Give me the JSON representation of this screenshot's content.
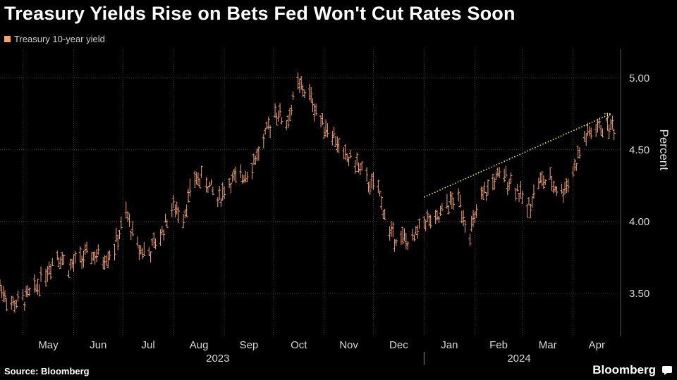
{
  "header": {
    "title": "Treasury Yields Rise on Bets Fed Won't Cut Rates Soon"
  },
  "footer": {
    "source": "Source: Bloomberg",
    "brand": "Bloomberg"
  },
  "colors": {
    "series": "#f5a26e",
    "arrow": "#f0f060",
    "grid": "#3a3a3a",
    "text": "#d8d8d8"
  },
  "chart_data": {
    "type": "line",
    "title": "Treasury Yields Rise on Bets Fed Won't Cut Rates Soon",
    "ylabel": "Percent",
    "ylim": [
      3.2,
      5.2
    ],
    "yticks": [
      3.5,
      4.0,
      4.5,
      5.0
    ],
    "ytick_labels": [
      "3.50",
      "4.00",
      "4.50",
      "5.00"
    ],
    "xlim": [
      "2023-04-17",
      "2024-04-30"
    ],
    "x_month_labels": [
      "May",
      "Jun",
      "Jul",
      "Aug",
      "Sep",
      "Oct",
      "Nov",
      "Dec",
      "Jan",
      "Feb",
      "Mar",
      "Apr"
    ],
    "x_month_starts": [
      "2023-05-01",
      "2023-06-01",
      "2023-07-01",
      "2023-08-01",
      "2023-09-01",
      "2023-10-01",
      "2023-11-01",
      "2023-12-01",
      "2024-01-01",
      "2024-02-01",
      "2024-03-01",
      "2024-04-01"
    ],
    "year_labels": [
      {
        "label": "2023",
        "center": "2023-08-28"
      },
      {
        "label": "2024",
        "center": "2024-02-28"
      }
    ],
    "year_divider": "2024-01-01",
    "legend": [
      "Treasury 10-year yield"
    ],
    "grid": true,
    "legend_position": "top-left",
    "series": [
      {
        "name": "Treasury 10-year yield",
        "style": "daily-high-low-bars",
        "x": [
          "2023-04-17",
          "2023-04-24",
          "2023-05-01",
          "2023-05-08",
          "2023-05-15",
          "2023-05-22",
          "2023-05-29",
          "2023-06-05",
          "2023-06-12",
          "2023-06-19",
          "2023-06-26",
          "2023-07-03",
          "2023-07-10",
          "2023-07-17",
          "2023-07-24",
          "2023-07-31",
          "2023-08-07",
          "2023-08-14",
          "2023-08-21",
          "2023-08-28",
          "2023-09-04",
          "2023-09-11",
          "2023-09-18",
          "2023-09-25",
          "2023-10-02",
          "2023-10-09",
          "2023-10-16",
          "2023-10-23",
          "2023-10-30",
          "2023-11-06",
          "2023-11-13",
          "2023-11-20",
          "2023-11-27",
          "2023-12-04",
          "2023-12-11",
          "2023-12-18",
          "2023-12-25",
          "2024-01-01",
          "2024-01-08",
          "2024-01-15",
          "2024-01-22",
          "2024-01-29",
          "2024-02-05",
          "2024-02-12",
          "2024-02-19",
          "2024-02-26",
          "2024-03-04",
          "2024-03-11",
          "2024-03-18",
          "2024-03-25",
          "2024-04-01",
          "2024-04-08",
          "2024-04-15",
          "2024-04-22"
        ],
        "values": [
          3.55,
          3.42,
          3.45,
          3.52,
          3.65,
          3.78,
          3.68,
          3.74,
          3.77,
          3.74,
          3.82,
          4.05,
          3.82,
          3.78,
          3.9,
          4.1,
          4.05,
          4.3,
          4.28,
          4.15,
          4.28,
          4.3,
          4.4,
          4.55,
          4.78,
          4.68,
          4.95,
          4.88,
          4.7,
          4.62,
          4.45,
          4.42,
          4.28,
          4.22,
          3.92,
          3.88,
          3.85,
          4.02,
          3.98,
          4.12,
          4.15,
          3.92,
          4.15,
          4.28,
          4.32,
          4.25,
          4.08,
          4.28,
          4.28,
          4.2,
          4.35,
          4.58,
          4.65,
          4.66
        ]
      }
    ],
    "annotation": {
      "type": "arrow",
      "from": {
        "x": "2024-01-01",
        "y": 4.17
      },
      "to": {
        "x": "2024-04-24",
        "y": 4.75
      }
    }
  }
}
